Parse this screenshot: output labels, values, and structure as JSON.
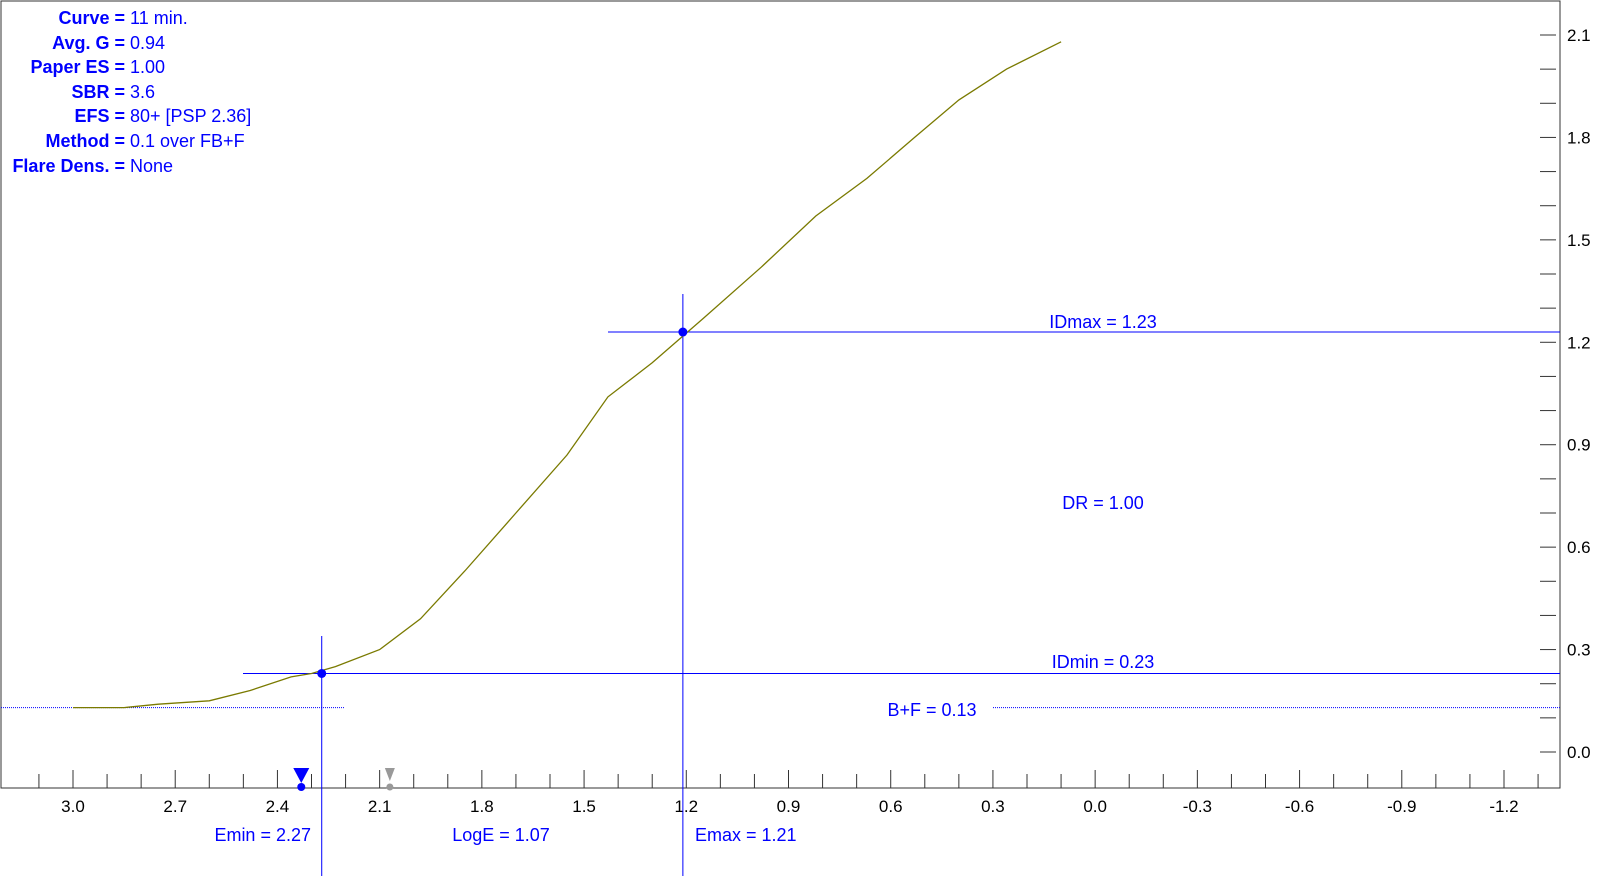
{
  "info_panel": {
    "rows": [
      {
        "key": "Curve =",
        "value": "11 min."
      },
      {
        "key": "Avg. G =",
        "value": "0.94"
      },
      {
        "key": "Paper ES =",
        "value": "1.00"
      },
      {
        "key": "SBR =",
        "value": "3.6"
      },
      {
        "key": "EFS =",
        "value": "80+ [PSP 2.36]"
      },
      {
        "key": "Method =",
        "value": "0.1 over FB+F"
      },
      {
        "key": "Flare Dens. =",
        "value": "None"
      }
    ]
  },
  "colors": {
    "curve": "#7a7a00",
    "annotation": "#0000ff",
    "axis": "#333333",
    "grey_marker": "#999999"
  },
  "chart_data": {
    "type": "line",
    "title": "",
    "xlabel": "",
    "ylabel": "",
    "x_reversed": true,
    "xlim": [
      3.2,
      -1.2
    ],
    "ylim": [
      -0.05,
      2.2
    ],
    "x_ticks": [
      "3.0",
      "2.7",
      "2.4",
      "2.1",
      "1.8",
      "1.5",
      "1.2",
      "0.9",
      "0.6",
      "0.3",
      "0.0",
      "-0.3",
      "-0.6",
      "-0.9",
      "-1.2"
    ],
    "y_ticks": [
      "0.0",
      "0.3",
      "0.6",
      "0.9",
      "1.2",
      "1.5",
      "1.8",
      "2.1"
    ],
    "series": [
      {
        "x": [
          3.0,
          2.85,
          2.75,
          2.6,
          2.48,
          2.36,
          2.3,
          2.23,
          2.1,
          1.98,
          1.85,
          1.7,
          1.55,
          1.43,
          1.3,
          1.15,
          0.98,
          0.82,
          0.67,
          0.53,
          0.4,
          0.26,
          0.1
        ],
        "y": [
          0.13,
          0.13,
          0.14,
          0.15,
          0.18,
          0.22,
          0.23,
          0.25,
          0.3,
          0.39,
          0.53,
          0.7,
          0.87,
          1.04,
          1.14,
          1.27,
          1.42,
          1.57,
          1.68,
          1.8,
          1.91,
          2.0,
          2.08
        ]
      }
    ],
    "annotations": {
      "idmax": {
        "label": "IDmax = 1.23",
        "y": 1.23
      },
      "idmin": {
        "label": "IDmin = 0.23",
        "y": 0.23
      },
      "bf": {
        "label": "B+F = 0.13",
        "y": 0.13
      },
      "dr": {
        "label": "DR = 1.00"
      },
      "emin": {
        "label": "Emin = 2.27",
        "x": 2.27
      },
      "emax": {
        "label": "Emax = 1.21",
        "x": 1.21
      },
      "loge": {
        "label": "LogE = 1.07"
      },
      "points": [
        {
          "x": 2.27,
          "y": 0.23
        },
        {
          "x": 1.21,
          "y": 1.23
        }
      ],
      "blue_marker_x": 2.33,
      "grey_marker_x": 2.07
    },
    "grid": false
  }
}
